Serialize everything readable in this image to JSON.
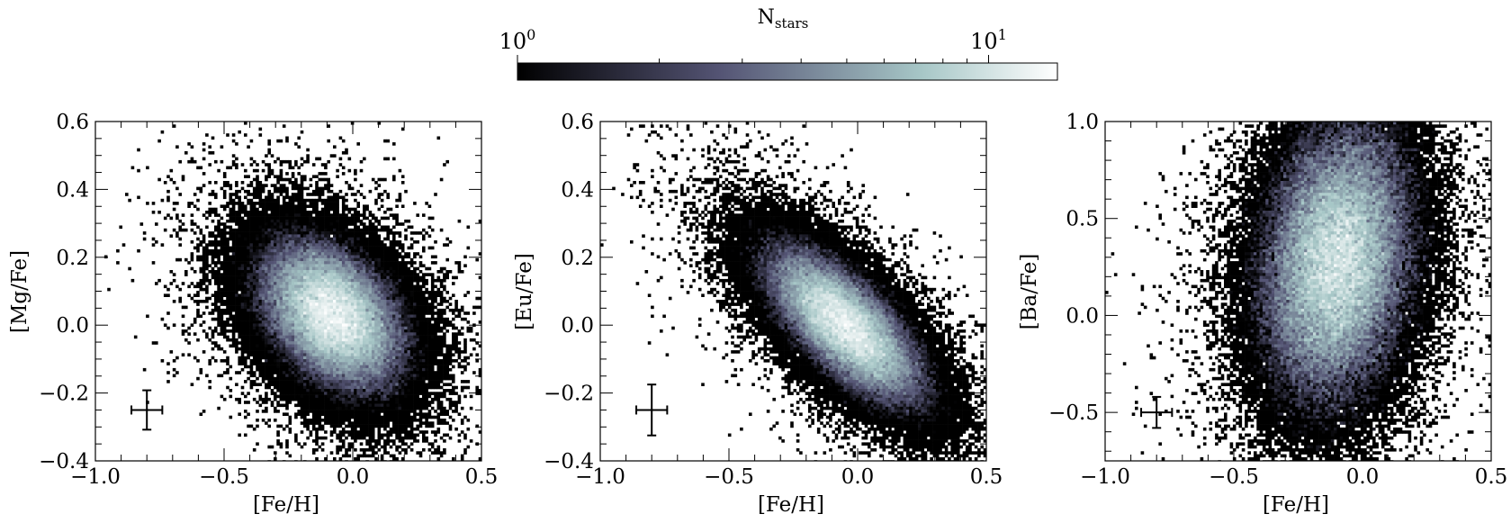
{
  "colorbar": {
    "label_main": "N",
    "label_sub": "stars",
    "scale": "log",
    "range": [
      1,
      14
    ],
    "colormap": "bone",
    "ticks": [
      {
        "value": 1,
        "base": "10",
        "exp": "0"
      },
      {
        "value": 10,
        "base": "10",
        "exp": "1"
      }
    ]
  },
  "chart_data": [
    {
      "type": "heatmap",
      "xlabel": "[Fe/H]",
      "ylabel": "[Mg/Fe]",
      "xlim": [
        -1.0,
        0.5
      ],
      "ylim": [
        -0.4,
        0.6
      ],
      "xticks": [
        {
          "v": -1.0,
          "label": "−1.0"
        },
        {
          "v": -0.5,
          "label": "−0.5"
        },
        {
          "v": 0.0,
          "label": "0.0"
        },
        {
          "v": 0.5,
          "label": "0.5"
        }
      ],
      "yticks": [
        {
          "v": -0.4,
          "label": "−0.4"
        },
        {
          "v": -0.2,
          "label": "−0.2"
        },
        {
          "v": 0.0,
          "label": "0.0"
        },
        {
          "v": 0.2,
          "label": "0.2"
        },
        {
          "v": 0.4,
          "label": "0.4"
        },
        {
          "v": 0.6,
          "label": "0.6"
        }
      ],
      "density_peak": {
        "x": -0.08,
        "y": 0.03
      },
      "density_spread": {
        "major": 0.32,
        "minor": 0.1,
        "angle_deg": -29
      },
      "error_bar": {
        "x": -0.8,
        "y": -0.25,
        "xerr": 0.06,
        "yerr": 0.058
      }
    },
    {
      "type": "heatmap",
      "xlabel": "[Fe/H]",
      "ylabel": "[Eu/Fe]",
      "xlim": [
        -1.0,
        0.5
      ],
      "ylim": [
        -0.4,
        0.6
      ],
      "xticks": [
        {
          "v": -1.0,
          "label": "−1.0"
        },
        {
          "v": -0.5,
          "label": "−0.5"
        },
        {
          "v": 0.0,
          "label": "0.0"
        },
        {
          "v": 0.5,
          "label": "0.5"
        }
      ],
      "yticks": [
        {
          "v": -0.4,
          "label": "−0.4"
        },
        {
          "v": -0.2,
          "label": "−0.2"
        },
        {
          "v": 0.0,
          "label": "0.0"
        },
        {
          "v": 0.2,
          "label": "0.2"
        },
        {
          "v": 0.4,
          "label": "0.4"
        },
        {
          "v": 0.6,
          "label": "0.6"
        }
      ],
      "density_peak": {
        "x": -0.05,
        "y": 0.0
      },
      "density_spread": {
        "major": 0.38,
        "minor": 0.075,
        "angle_deg": -34
      },
      "error_bar": {
        "x": -0.8,
        "y": -0.25,
        "xerr": 0.06,
        "yerr": 0.075
      }
    },
    {
      "type": "heatmap",
      "xlabel": "[Fe/H]",
      "ylabel": "[Ba/Fe]",
      "xlim": [
        -1.0,
        0.5
      ],
      "ylim": [
        -0.75,
        1.0
      ],
      "xticks": [
        {
          "v": -1.0,
          "label": "−1.0"
        },
        {
          "v": -0.5,
          "label": "−0.5"
        },
        {
          "v": 0.0,
          "label": "0.0"
        },
        {
          "v": 0.5,
          "label": "0.5"
        }
      ],
      "yticks": [
        {
          "v": -0.5,
          "label": "−0.5"
        },
        {
          "v": 0.0,
          "label": "0.0"
        },
        {
          "v": 0.5,
          "label": "0.5"
        },
        {
          "v": 1.0,
          "label": "1.0"
        }
      ],
      "density_peak": {
        "x": -0.1,
        "y": 0.28
      },
      "density_spread": {
        "major": 0.3,
        "minor": 0.22,
        "angle_deg": -14
      },
      "error_bar": {
        "x": -0.8,
        "y": -0.5,
        "xerr": 0.06,
        "yerr": 0.08
      }
    }
  ]
}
